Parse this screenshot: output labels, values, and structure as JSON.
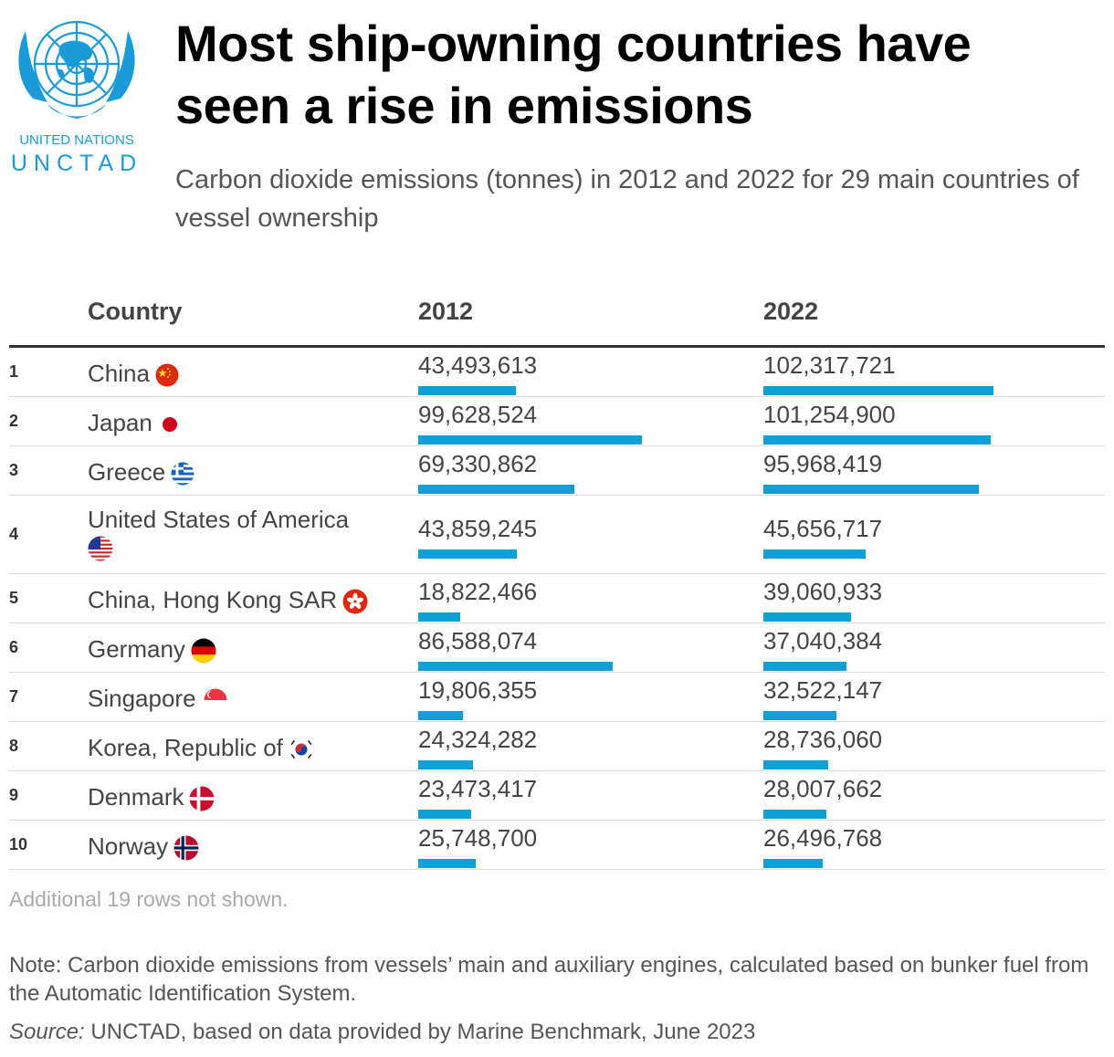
{
  "logo": {
    "line1": "UNITED NATIONS",
    "line2": "UNCTAD",
    "color": "#1a9bd8"
  },
  "title": "Most ship-owning countries have seen a rise in emissions",
  "subtitle": "Carbon dioxide emissions (tonnes) in 2012 and 2022 for 29 main countries of vessel ownership",
  "table": {
    "headers": {
      "country": "Country",
      "y2012": "2012",
      "y2022": "2022"
    },
    "bar_color": "#0fa0d8"
  },
  "chart_data": {
    "type": "table",
    "columns": [
      "Country",
      "2012",
      "2022"
    ],
    "rows": [
      {
        "rank": "1",
        "country": "China",
        "flag": "china-flag",
        "v2012": 43493613,
        "v2022": 102317721,
        "v2012_label": "43,493,613",
        "v2022_label": "102,317,721"
      },
      {
        "rank": "2",
        "country": "Japan",
        "flag": "japan-flag",
        "v2012": 99628524,
        "v2022": 101254900,
        "v2012_label": "99,628,524",
        "v2022_label": "101,254,900"
      },
      {
        "rank": "3",
        "country": "Greece",
        "flag": "greece-flag",
        "v2012": 69330862,
        "v2022": 95968419,
        "v2012_label": "69,330,862",
        "v2022_label": "95,968,419"
      },
      {
        "rank": "4",
        "country": "United States of America",
        "flag": "usa-flag",
        "v2012": 43859245,
        "v2022": 45656717,
        "v2012_label": "43,859,245",
        "v2022_label": "45,656,717"
      },
      {
        "rank": "5",
        "country": "China, Hong Kong SAR",
        "flag": "hong-kong-flag",
        "v2012": 18822466,
        "v2022": 39060933,
        "v2012_label": "18,822,466",
        "v2022_label": "39,060,933"
      },
      {
        "rank": "6",
        "country": "Germany",
        "flag": "germany-flag",
        "v2012": 86588074,
        "v2022": 37040384,
        "v2012_label": "86,588,074",
        "v2022_label": "37,040,384"
      },
      {
        "rank": "7",
        "country": "Singapore",
        "flag": "singapore-flag",
        "v2012": 19806355,
        "v2022": 32522147,
        "v2012_label": "19,806,355",
        "v2022_label": "32,522,147"
      },
      {
        "rank": "8",
        "country": "Korea, Republic of",
        "flag": "korea-flag",
        "v2012": 24324282,
        "v2022": 28736060,
        "v2012_label": "24,324,282",
        "v2022_label": "28,736,060"
      },
      {
        "rank": "9",
        "country": "Denmark",
        "flag": "denmark-flag",
        "v2012": 23473417,
        "v2022": 28007662,
        "v2012_label": "23,473,417",
        "v2022_label": "28,007,662"
      },
      {
        "rank": "10",
        "country": "Norway",
        "flag": "norway-flag",
        "v2012": 25748700,
        "v2022": 26496768,
        "v2012_label": "25,748,700",
        "v2022_label": "26,496,768"
      }
    ]
  },
  "more_rows": "Additional 19 rows not shown.",
  "note": "Note: Carbon dioxide emissions from vessels’ main and auxiliary engines, calculated based on bunker fuel from the Automatic Identification System.",
  "source": {
    "label": "Source:",
    "text": " UNCTAD, based on data provided by Marine Benchmark, June 2023"
  }
}
